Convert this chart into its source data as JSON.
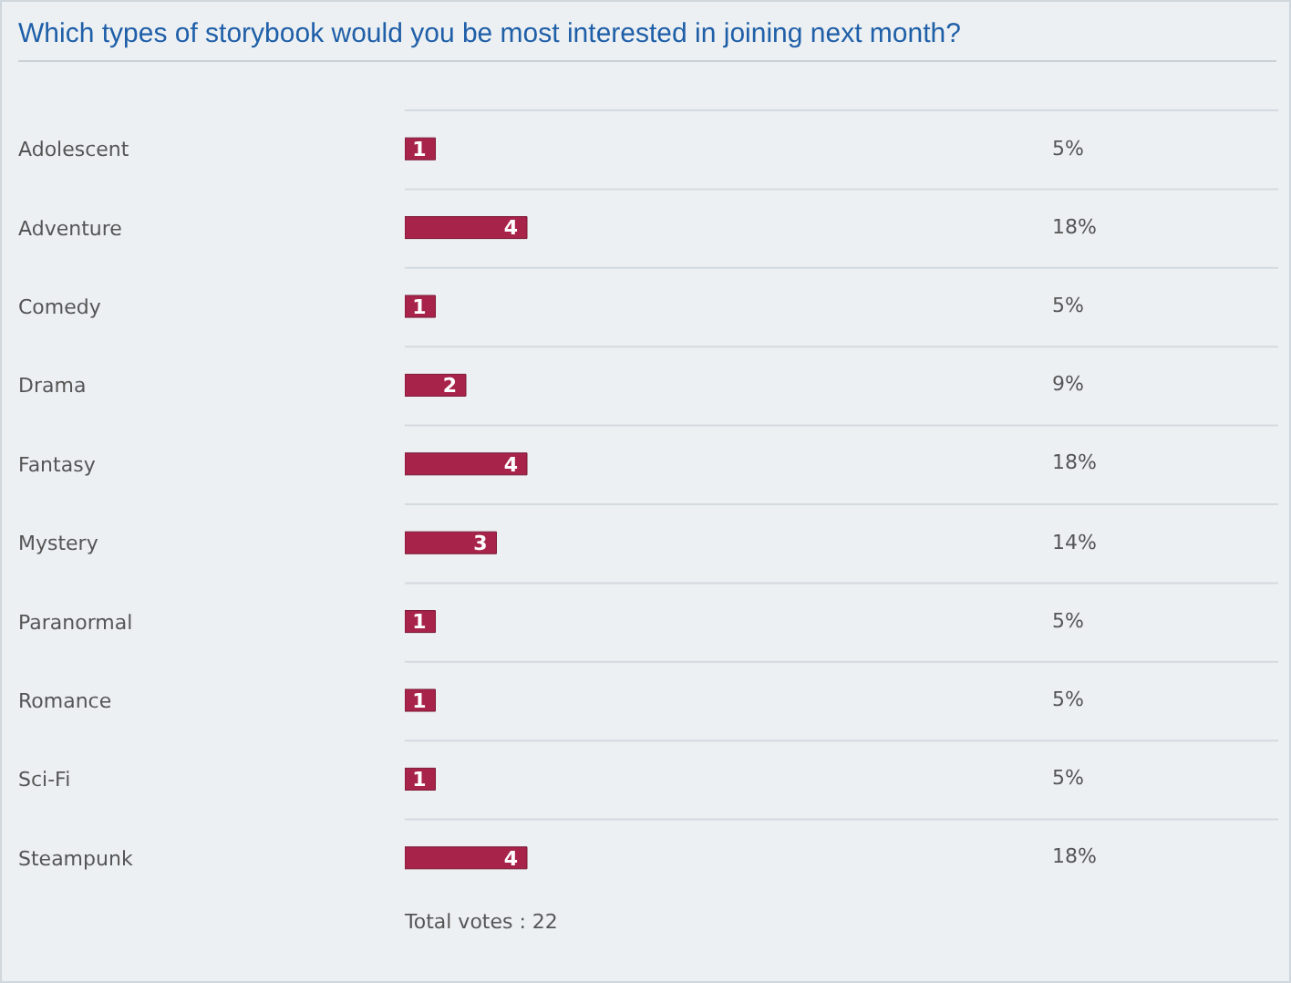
{
  "chart_data": {
    "type": "bar",
    "orientation": "horizontal",
    "title": "Which types of storybook would you be most interested in joining next month?",
    "categories": [
      "Adolescent",
      "Adventure",
      "Comedy",
      "Drama",
      "Fantasy",
      "Mystery",
      "Paranormal",
      "Romance",
      "Sci-Fi",
      "Steampunk"
    ],
    "values": [
      1,
      4,
      1,
      2,
      4,
      3,
      1,
      1,
      1,
      4
    ],
    "color": "#a8234a",
    "data_labels": true,
    "grid": "y",
    "annotations": [
      "5%",
      "18%",
      "5%",
      "9%",
      "18%",
      "14%",
      "5%",
      "5%",
      "5%",
      "18%",
      "Total votes : 22"
    ]
  }
}
